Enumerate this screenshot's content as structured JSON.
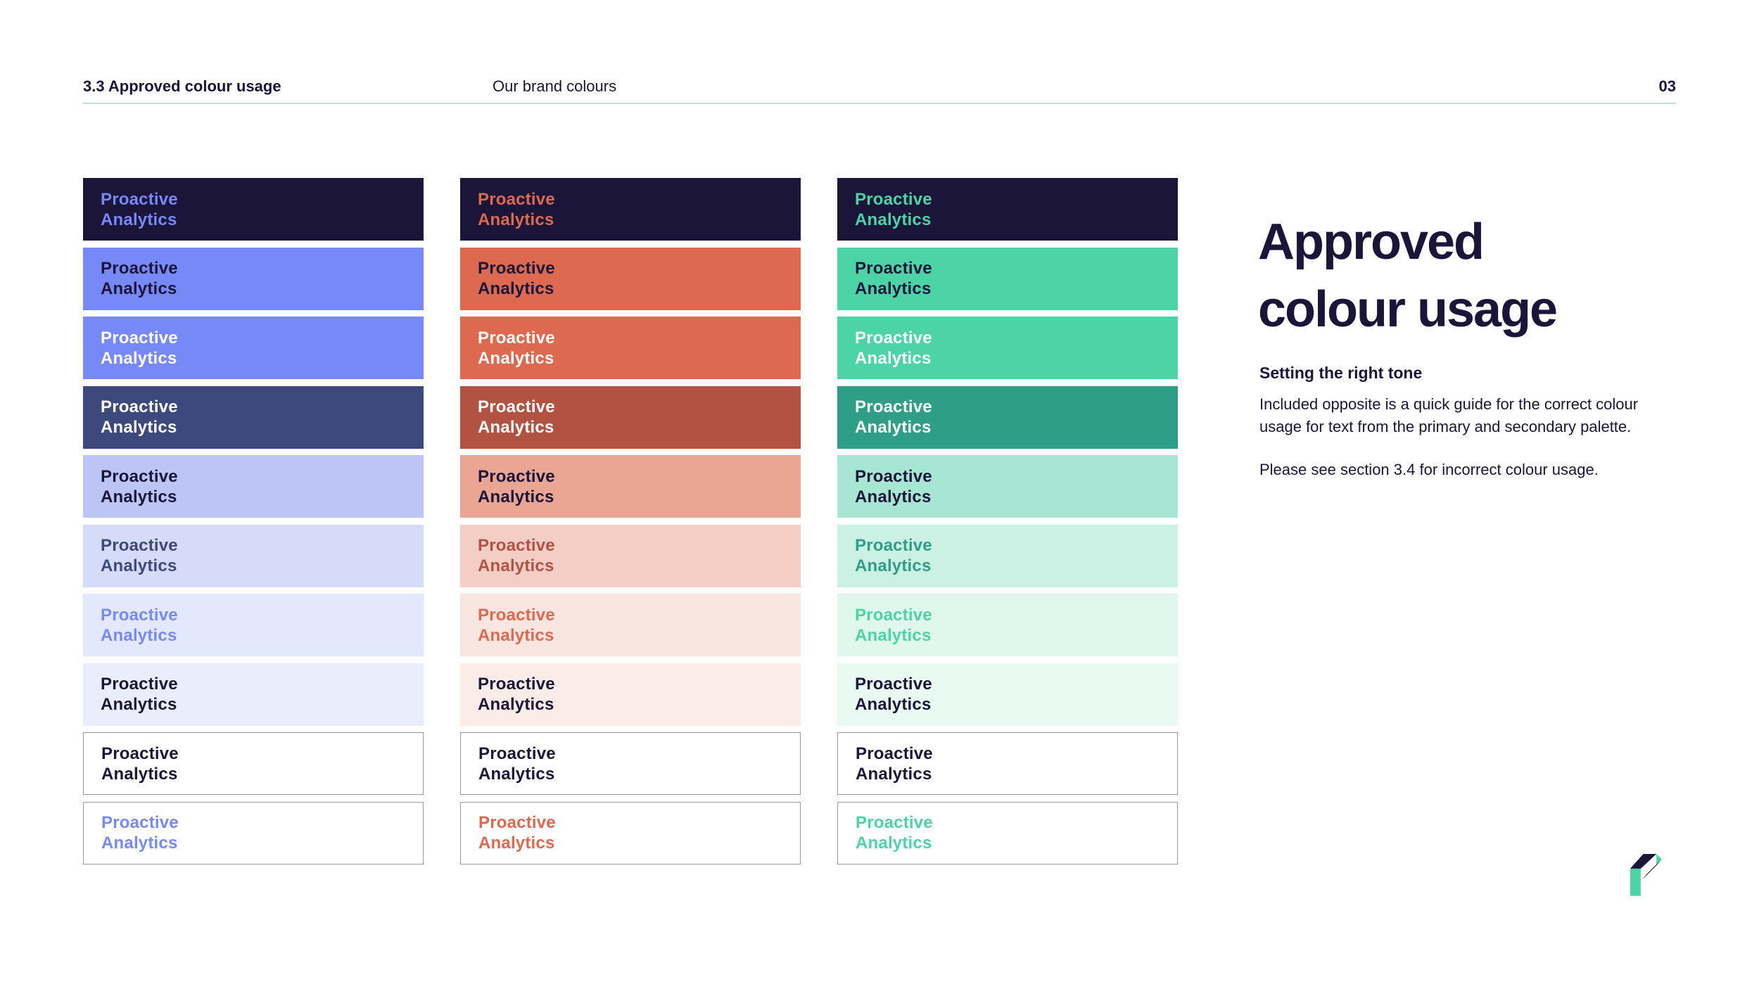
{
  "header": {
    "section_label": "3.3 Approved colour usage",
    "center_label": "Our brand colours",
    "page_number": "03"
  },
  "panel": {
    "title": "Approved\ncolour usage",
    "subtitle": "Setting the right tone",
    "paragraph1": "Included opposite is a quick guide for the correct colour\nusage for text from the primary and secondary palette.",
    "paragraph2": "Please see section 3.4 for incorrect colour usage."
  },
  "swatch": {
    "line1": "Proactive",
    "line2": "Analytics"
  },
  "palette": {
    "navy": "#1A1539",
    "white": "#FFFFFF",
    "periwinkle": "#7689F6",
    "slate": "#3D487C",
    "periwinkle_60": "#BDC5F7",
    "periwinkle_40": "#D6DBFA",
    "periwinkle_25": "#E4E8FC",
    "periwinkle_15": "#EAEDFC",
    "coral": "#DE6951",
    "rust": "#B25242",
    "coral_60": "#EBA593",
    "coral_40": "#F4CDC4",
    "coral_25": "#FAE6E1",
    "coral_15": "#FBECE8",
    "mint": "#4CD4A6",
    "teal": "#2E9E86",
    "mint_60": "#A6E6D2",
    "mint_40": "#CBF0E4",
    "mint_25": "#E0F7EE",
    "mint_15": "#E9FAF3",
    "border_gray": "#9A9A9A",
    "rule": "#BCE3D9"
  },
  "columns": [
    {
      "id": "blue",
      "rows": [
        {
          "bg": "navy",
          "fg": "periwinkle"
        },
        {
          "bg": "periwinkle",
          "fg": "navy"
        },
        {
          "bg": "periwinkle",
          "fg": "white"
        },
        {
          "bg": "slate",
          "fg": "white"
        },
        {
          "bg": "periwinkle_60",
          "fg": "navy"
        },
        {
          "bg": "periwinkle_40",
          "fg": "slate"
        },
        {
          "bg": "periwinkle_25",
          "fg": "periwinkle"
        },
        {
          "bg": "periwinkle_15",
          "fg": "navy"
        },
        {
          "bg": "white",
          "fg": "navy",
          "border": true
        },
        {
          "bg": "white",
          "fg": "periwinkle",
          "border": true
        }
      ]
    },
    {
      "id": "coral",
      "rows": [
        {
          "bg": "navy",
          "fg": "coral"
        },
        {
          "bg": "coral",
          "fg": "navy"
        },
        {
          "bg": "coral",
          "fg": "white"
        },
        {
          "bg": "rust",
          "fg": "white"
        },
        {
          "bg": "coral_60",
          "fg": "navy"
        },
        {
          "bg": "coral_40",
          "fg": "rust"
        },
        {
          "bg": "coral_25",
          "fg": "coral"
        },
        {
          "bg": "coral_15",
          "fg": "navy"
        },
        {
          "bg": "white",
          "fg": "navy",
          "border": true
        },
        {
          "bg": "white",
          "fg": "coral",
          "border": true
        }
      ]
    },
    {
      "id": "green",
      "rows": [
        {
          "bg": "navy",
          "fg": "mint"
        },
        {
          "bg": "mint",
          "fg": "navy"
        },
        {
          "bg": "mint",
          "fg": "white"
        },
        {
          "bg": "teal",
          "fg": "white"
        },
        {
          "bg": "mint_60",
          "fg": "navy"
        },
        {
          "bg": "mint_40",
          "fg": "teal"
        },
        {
          "bg": "mint_25",
          "fg": "mint"
        },
        {
          "bg": "mint_15",
          "fg": "navy"
        },
        {
          "bg": "white",
          "fg": "navy",
          "border": true
        },
        {
          "bg": "white",
          "fg": "mint",
          "border": true
        }
      ]
    }
  ],
  "logo": {
    "name": "Proactive Analytics logo mark",
    "navy": "#1A1539",
    "mint": "#4CD4A6"
  }
}
